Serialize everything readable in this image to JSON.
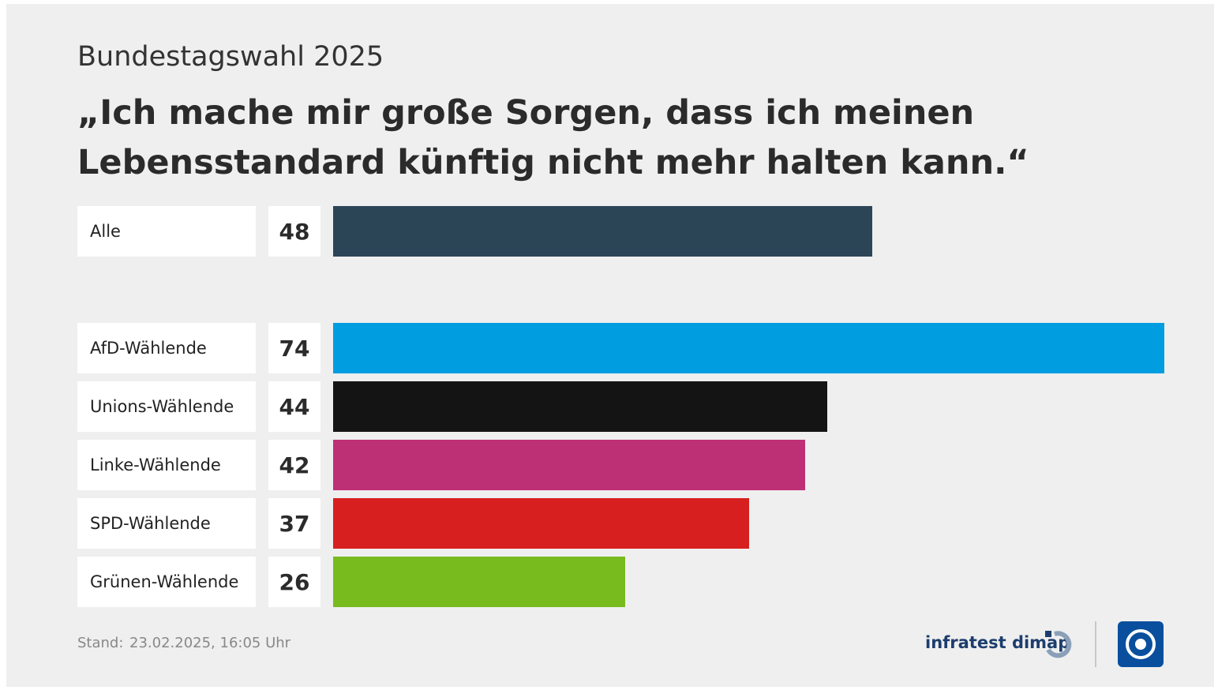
{
  "chart_data": {
    "type": "bar",
    "orientation": "horizontal",
    "subtitle": "Bundestagswahl 2025",
    "title": "„Ich mache mir große Sorgen, dass ich meinen Lebensstandard künftig nicht mehr halten kann.“",
    "categories": [
      "Alle",
      "AfD-Wählende",
      "Unions-Wählende",
      "Linke-Wählende",
      "SPD-Wählende",
      "Grünen-Wählende"
    ],
    "values": [
      48,
      74,
      44,
      42,
      37,
      26
    ],
    "colors": [
      "#2b4557",
      "#009ee0",
      "#141414",
      "#be3075",
      "#d71f1f",
      "#78bb1f"
    ],
    "footer_label": "Stand:",
    "footer_date": "23.02.2025, 16:05 Uhr",
    "source": "infratest dimap"
  }
}
